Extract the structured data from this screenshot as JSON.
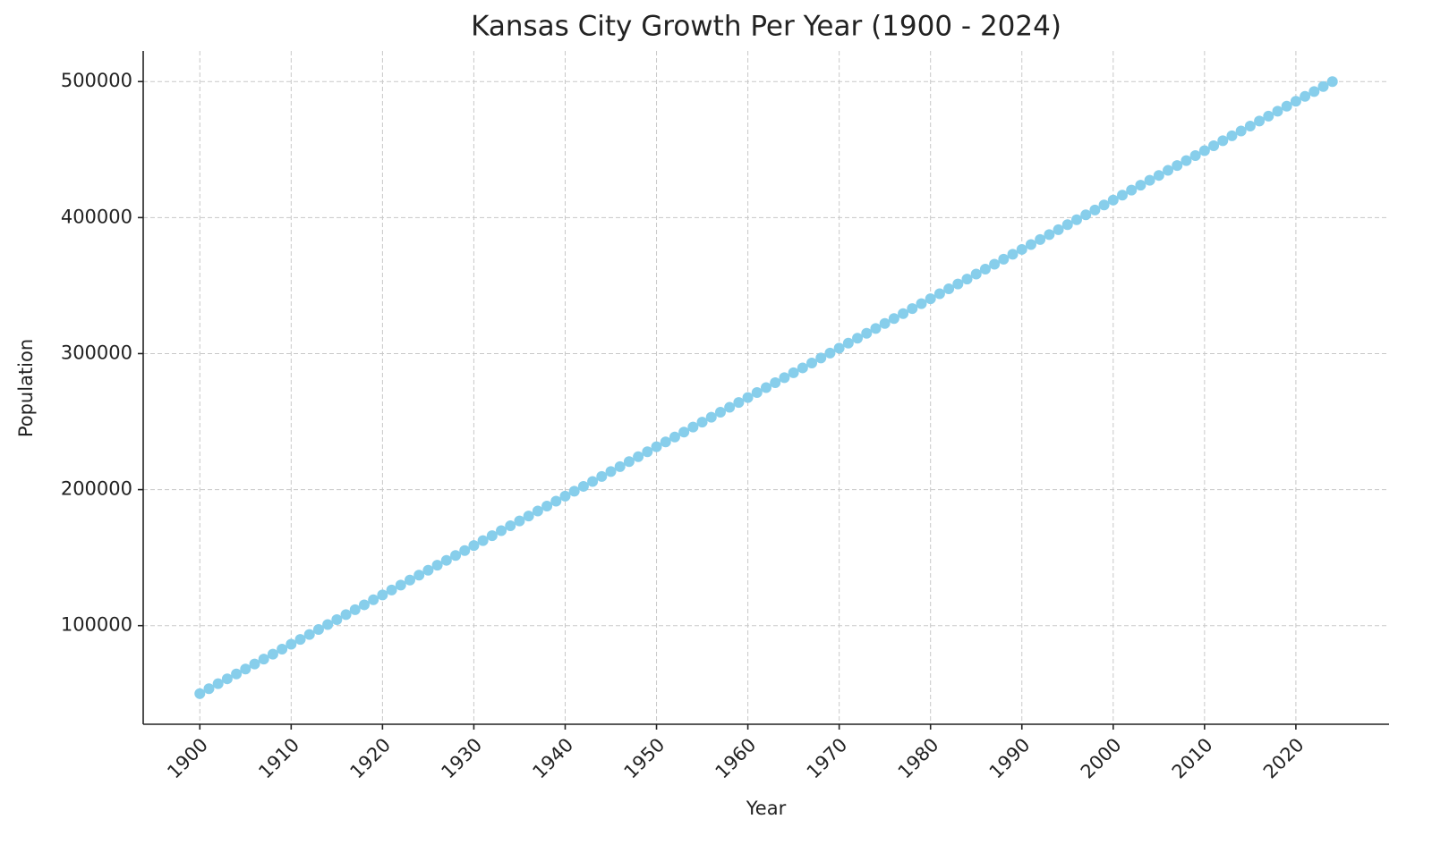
{
  "chart_data": {
    "type": "line",
    "title": "Kansas City Growth Per Year (1900 - 2024)",
    "xlabel": "Year",
    "ylabel": "Population",
    "x": [
      1900,
      1901,
      1902,
      1903,
      1904,
      1905,
      1906,
      1907,
      1908,
      1909,
      1910,
      1911,
      1912,
      1913,
      1914,
      1915,
      1916,
      1917,
      1918,
      1919,
      1920,
      1921,
      1922,
      1923,
      1924,
      1925,
      1926,
      1927,
      1928,
      1929,
      1930,
      1931,
      1932,
      1933,
      1934,
      1935,
      1936,
      1937,
      1938,
      1939,
      1940,
      1941,
      1942,
      1943,
      1944,
      1945,
      1946,
      1947,
      1948,
      1949,
      1950,
      1951,
      1952,
      1953,
      1954,
      1955,
      1956,
      1957,
      1958,
      1959,
      1960,
      1961,
      1962,
      1963,
      1964,
      1965,
      1966,
      1967,
      1968,
      1969,
      1970,
      1971,
      1972,
      1973,
      1974,
      1975,
      1976,
      1977,
      1978,
      1979,
      1980,
      1981,
      1982,
      1983,
      1984,
      1985,
      1986,
      1987,
      1988,
      1989,
      1990,
      1991,
      1992,
      1993,
      1994,
      1995,
      1996,
      1997,
      1998,
      1999,
      2000,
      2001,
      2002,
      2003,
      2004,
      2005,
      2006,
      2007,
      2008,
      2009,
      2010,
      2011,
      2012,
      2013,
      2014,
      2015,
      2016,
      2017,
      2018,
      2019,
      2020,
      2021,
      2022,
      2023,
      2024
    ],
    "values": [
      50000,
      53600,
      57300,
      60900,
      64500,
      68100,
      71800,
      75400,
      79000,
      82700,
      86300,
      89900,
      93500,
      97200,
      100800,
      104400,
      108100,
      111700,
      115300,
      119000,
      122600,
      126200,
      129800,
      133500,
      137100,
      140700,
      144400,
      148000,
      151600,
      155200,
      158900,
      162500,
      166100,
      169800,
      173400,
      177000,
      180600,
      184300,
      187900,
      191500,
      195200,
      198800,
      202400,
      206000,
      209700,
      213300,
      216900,
      220600,
      224200,
      227800,
      231500,
      235100,
      238700,
      242300,
      246000,
      249600,
      253200,
      256900,
      260500,
      264100,
      267700,
      271400,
      275000,
      278600,
      282300,
      285900,
      289500,
      293100,
      296800,
      300400,
      304000,
      307700,
      311300,
      314900,
      318500,
      322200,
      325800,
      329400,
      333100,
      336700,
      340300,
      344000,
      347600,
      351200,
      354800,
      358500,
      362100,
      365700,
      369400,
      373000,
      376600,
      380200,
      383900,
      387500,
      391100,
      394800,
      398400,
      402000,
      405600,
      409300,
      412900,
      416500,
      420200,
      423800,
      427400,
      431000,
      434700,
      438300,
      441900,
      445600,
      449200,
      452800,
      456500,
      460100,
      463700,
      467300,
      471000,
      474600,
      478200,
      481900,
      485500,
      489100,
      492700,
      496400,
      500000
    ],
    "color": "#87ceeb",
    "xlim": [
      1893.8,
      2030.2
    ],
    "xticks": [
      1900,
      1910,
      1920,
      1930,
      1940,
      1950,
      1960,
      1970,
      1980,
      1990,
      2000,
      2010,
      2020
    ],
    "ylim": [
      27500,
      522500
    ],
    "yticks": [
      100000,
      200000,
      300000,
      400000,
      500000
    ],
    "grid": true
  }
}
